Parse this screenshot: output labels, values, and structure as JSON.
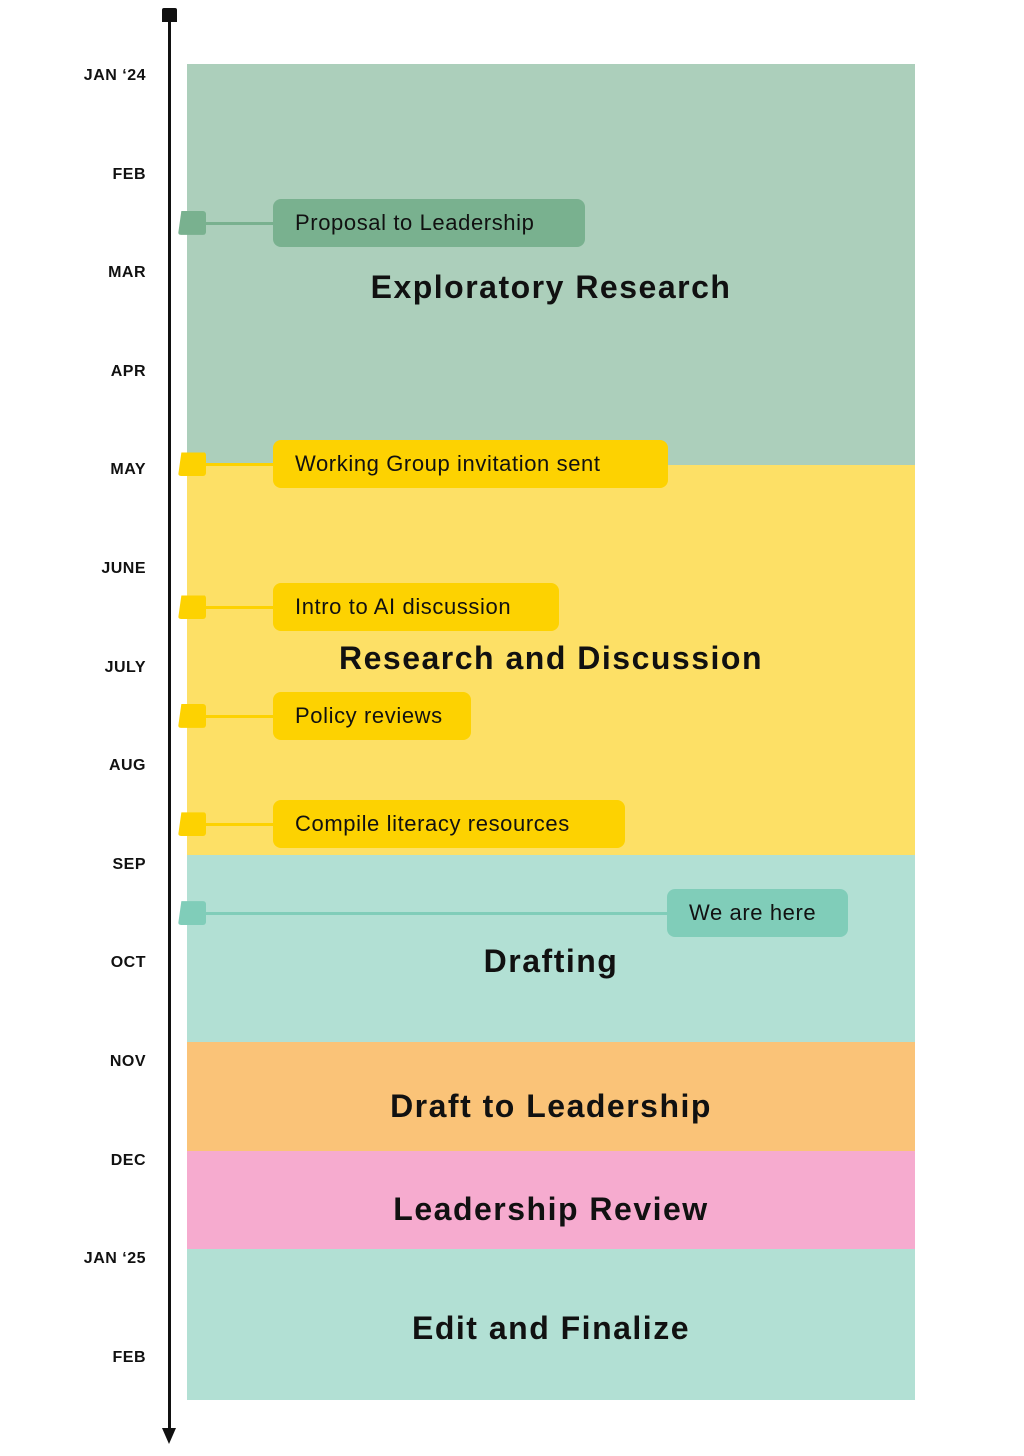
{
  "months": [
    "JAN ‘24",
    "FEB",
    "MAR",
    "APR",
    "MAY",
    "JUNE",
    "JULY",
    "AUG",
    "SEP",
    "OCT",
    "NOV",
    "DEC",
    "JAN ‘25",
    "FEB"
  ],
  "phases": [
    {
      "title": "Exploratory Research",
      "start_month": 0,
      "end_month": 4.05,
      "color": "#accfbb"
    },
    {
      "title": "Research and Discussion",
      "start_month": 4.05,
      "end_month": 8.0,
      "color": "#fde066"
    },
    {
      "title": "Drafting",
      "start_month": 8.0,
      "end_month": 9.9,
      "color": "#b2e0d4"
    },
    {
      "title": "Draft to Leadership",
      "start_month": 9.9,
      "end_month": 11.0,
      "color": "#fac378"
    },
    {
      "title": "Leadership Review",
      "start_month": 11.0,
      "end_month": 12.0,
      "color": "#f6abcf"
    },
    {
      "title": "Edit and Finalize",
      "start_month": 12.0,
      "end_month": 13.4,
      "color": "#b2e0d4"
    }
  ],
  "milestones": [
    {
      "label": "Proposal to Leadership",
      "month": 1.5,
      "color": "#79b18f"
    },
    {
      "label": "Working Group invitation sent",
      "month": 3.95,
      "color": "#fdd201"
    },
    {
      "label": "Intro to AI discussion",
      "month": 5.4,
      "color": "#fdd201"
    },
    {
      "label": "Policy reviews",
      "month": 6.5,
      "color": "#fdd201"
    },
    {
      "label": "Compile literacy resources",
      "month": 7.6,
      "color": "#fdd201"
    },
    {
      "label": "We are here",
      "month": 8.5,
      "color": "#80cdb9"
    }
  ]
}
